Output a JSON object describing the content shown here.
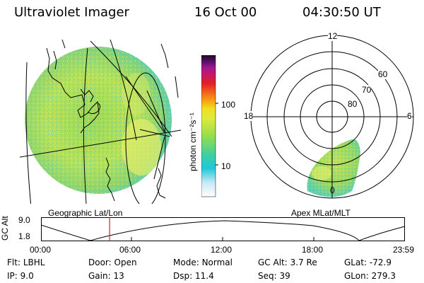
{
  "header": {
    "title": "Ultraviolet Imager",
    "date": "16 Oct 00",
    "time": "04:30:50 UT"
  },
  "colorbar": {
    "unit_label": "photon cm⁻²s⁻¹",
    "ticks": [
      "100",
      "10"
    ]
  },
  "left_map": {
    "label": "Geographic Lat/Lon"
  },
  "polar_plot": {
    "label": "Apex MLat/MLT",
    "mlt_labels": [
      "12",
      "18",
      "6",
      "0"
    ],
    "lat_labels": [
      "60",
      "70",
      "80"
    ]
  },
  "timeline": {
    "ylabel": "GC Alt",
    "y_ticks": [
      "9.0",
      "1.8"
    ],
    "x_ticks": [
      "00:00",
      "06:00",
      "12:00",
      "18:00",
      "23:59"
    ],
    "current_time_fraction": 0.188
  },
  "params": [
    [
      {
        "label": "Flt:",
        "value": "LBHL"
      },
      {
        "label": "Door:",
        "value": "Open"
      },
      {
        "label": "Mode:",
        "value": "Normal"
      },
      {
        "label": "GC Alt:",
        "value": "3.7 Re"
      },
      {
        "label": "GLat:",
        "value": "-72.9"
      }
    ],
    [
      {
        "label": "IP:",
        "value": "9.0"
      },
      {
        "label": "Gain:",
        "value": "13"
      },
      {
        "label": "Dsp:",
        "value": "11.4"
      },
      {
        "label": "Seq:",
        "value": "39"
      },
      {
        "label": "GLon:",
        "value": "279.3"
      }
    ]
  ],
  "colors": {
    "map_base": "#b9e35a",
    "marker": "#e02020"
  }
}
